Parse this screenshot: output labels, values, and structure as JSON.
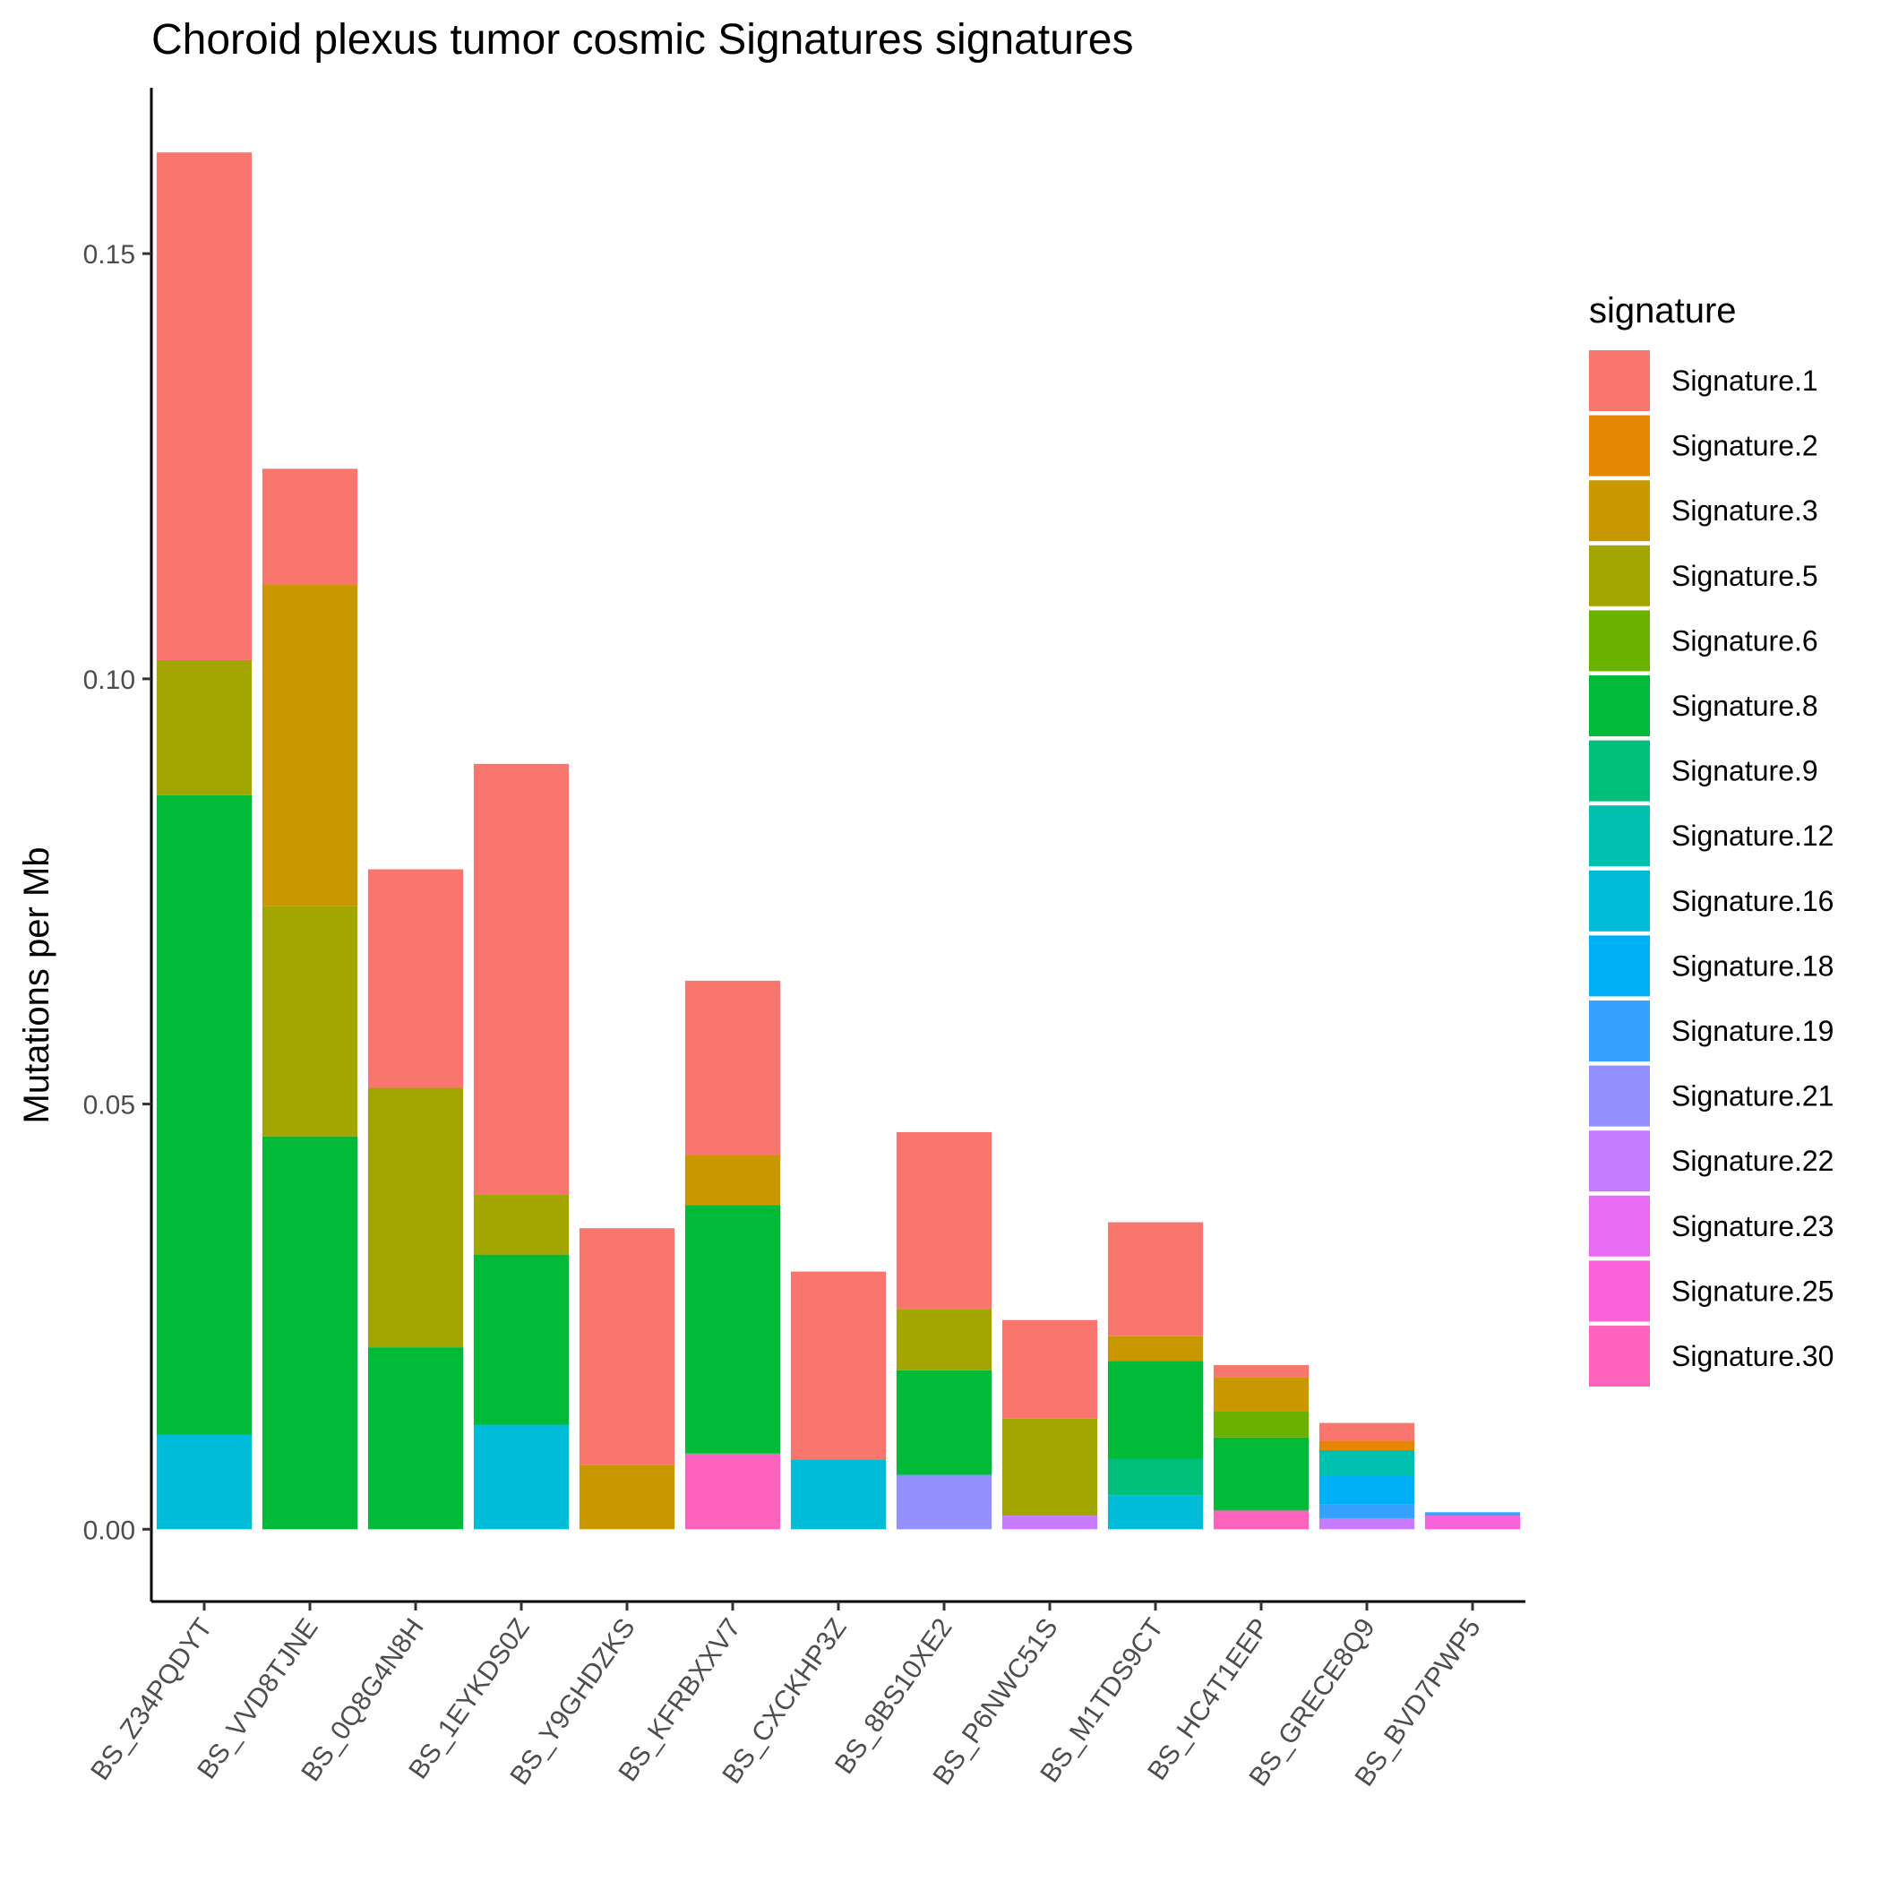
{
  "chart_data": {
    "type": "bar",
    "stacked": true,
    "title": "Choroid plexus tumor cosmic Signatures signatures",
    "xlabel": "",
    "ylabel": "Mutations per Mb",
    "ylim": [
      -0.0085,
      0.1695
    ],
    "yticks": [
      0.0,
      0.05,
      0.1,
      0.15
    ],
    "ytick_labels": [
      "0.00",
      "0.05",
      "0.10",
      "0.15"
    ],
    "grid": false,
    "legend": {
      "title": "signature",
      "position": "right"
    },
    "categories": [
      "BS_Z34PQDYT",
      "BS_VVD8TJNE",
      "BS_0Q8G4N8H",
      "BS_1EYKDS0Z",
      "BS_Y9GHDZKS",
      "BS_KFRBXXV7",
      "BS_CXCKHP3Z",
      "BS_8BS10XE2",
      "BS_P6NWC51S",
      "BS_M1TDS9CT",
      "BS_HC4T1EEP",
      "BS_GRECE8Q9",
      "BS_BVD7PWP5"
    ],
    "series": [
      {
        "name": "Signature.1",
        "color": "#F8766D",
        "values": [
          0.0597,
          0.0136,
          0.0257,
          0.0506,
          0.0278,
          0.0205,
          0.0221,
          0.0208,
          0.0116,
          0.0134,
          0.0014,
          0.0021,
          0
        ]
      },
      {
        "name": "Signature.2",
        "color": "#E58700",
        "values": [
          0,
          0,
          0,
          0,
          0,
          0,
          0,
          0,
          0,
          0,
          0,
          0.0011,
          0
        ]
      },
      {
        "name": "Signature.3",
        "color": "#C99800",
        "values": [
          0,
          0.0378,
          0,
          0,
          0.0076,
          0.0059,
          0,
          0,
          0,
          0.0029,
          0.004,
          0,
          0
        ]
      },
      {
        "name": "Signature.5",
        "color": "#A3A500",
        "values": [
          0.0159,
          0.0271,
          0.0305,
          0.0071,
          0,
          0,
          0,
          0.0072,
          0.0114,
          0,
          0,
          0,
          0
        ]
      },
      {
        "name": "Signature.6",
        "color": "#6BB100",
        "values": [
          0,
          0,
          0,
          0,
          0,
          0,
          0,
          0,
          0,
          0,
          0.0031,
          0,
          0
        ]
      },
      {
        "name": "Signature.8",
        "color": "#00BA38",
        "values": [
          0.0752,
          0.0462,
          0.0214,
          0.02,
          0,
          0.0292,
          0,
          0.0123,
          0,
          0.0115,
          0.0086,
          0,
          0
        ]
      },
      {
        "name": "Signature.9",
        "color": "#00BF7D",
        "values": [
          0,
          0,
          0,
          0,
          0,
          0,
          0,
          0,
          0,
          0.0043,
          0,
          0,
          0
        ]
      },
      {
        "name": "Signature.12",
        "color": "#00C0AF",
        "values": [
          0,
          0,
          0,
          0,
          0,
          0,
          0,
          0,
          0,
          0,
          0,
          0.003,
          0
        ]
      },
      {
        "name": "Signature.16",
        "color": "#00BCD8",
        "values": [
          0.0111,
          0,
          0,
          0.0123,
          0,
          0,
          0.0082,
          0,
          0,
          0.004,
          0,
          0,
          0
        ]
      },
      {
        "name": "Signature.18",
        "color": "#00B0F6",
        "values": [
          0,
          0,
          0,
          0,
          0,
          0,
          0,
          0,
          0,
          0,
          0,
          0.0034,
          0
        ]
      },
      {
        "name": "Signature.19",
        "color": "#35A2FF",
        "values": [
          0,
          0,
          0,
          0,
          0,
          0,
          0,
          0,
          0,
          0,
          0,
          0.0016,
          0.0004
        ]
      },
      {
        "name": "Signature.21",
        "color": "#9590FF",
        "values": [
          0,
          0,
          0,
          0,
          0,
          0,
          0,
          0.0064,
          0,
          0,
          0,
          0,
          0
        ]
      },
      {
        "name": "Signature.22",
        "color": "#C77CFF",
        "values": [
          0,
          0,
          0,
          0,
          0,
          0,
          0,
          0,
          0.0016,
          0,
          0,
          0.0013,
          0
        ]
      },
      {
        "name": "Signature.23",
        "color": "#E76BF3",
        "values": [
          0,
          0,
          0,
          0,
          0,
          0,
          0,
          0,
          0,
          0,
          0,
          0,
          0
        ]
      },
      {
        "name": "Signature.25",
        "color": "#FA62DB",
        "values": [
          0,
          0,
          0,
          0,
          0,
          0,
          0,
          0,
          0,
          0,
          0,
          0,
          0.0016
        ]
      },
      {
        "name": "Signature.30",
        "color": "#FF62BC",
        "values": [
          0,
          0,
          0,
          0,
          0,
          0.0089,
          0,
          0,
          0,
          0,
          0.0022,
          0,
          0
        ]
      }
    ]
  }
}
